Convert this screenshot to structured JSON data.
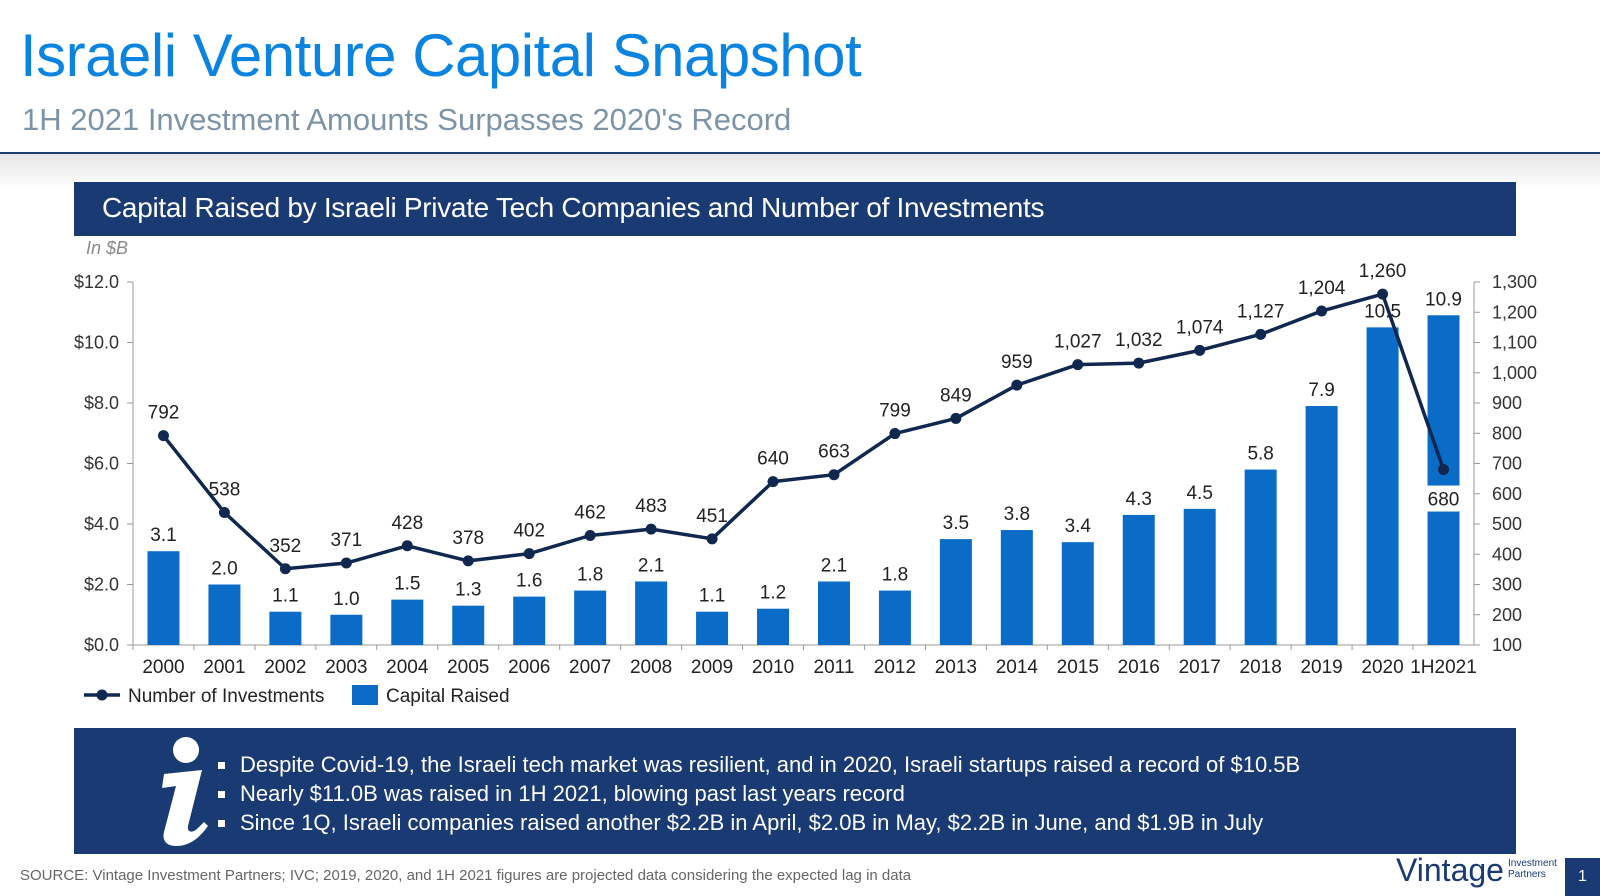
{
  "slide": {
    "title": "Israeli Venture Capital Snapshot",
    "subtitle": "1H 2021 Investment Amounts Surpasses 2020's Record",
    "chart_header": "Capital Raised by Israeli Private Tech Companies and Number of Investments",
    "bullets": [
      "Despite Covid-19, the Israeli tech market was resilient, and in 2020, Israeli startups raised a record of $10.5B",
      "Nearly $11.0B was raised in 1H 2021, blowing past last years record",
      "Since 1Q, Israeli companies raised another $2.2B in April, $2.0B in May, $2.2B in June, and $1.9B in July"
    ],
    "source": "SOURCE: Vintage Investment Partners; IVC; 2019, 2020, and 1H 2021 figures are projected data considering the expected lag in data",
    "logo": {
      "word": "Vintage",
      "sub_line1": "Investment",
      "sub_line2": "Partners"
    },
    "page_number": "1",
    "info_icon": "info-i-icon"
  },
  "colors": {
    "bar": "#0a6cc7",
    "line": "#10274f",
    "header_bg": "#1a3a73",
    "title": "#0a84e0",
    "subtitle": "#7d93a8"
  },
  "chart_data": {
    "type": "bar",
    "units_label": "In $B",
    "categories": [
      "2000",
      "2001",
      "2002",
      "2003",
      "2004",
      "2005",
      "2006",
      "2007",
      "2008",
      "2009",
      "2010",
      "2011",
      "2012",
      "2013",
      "2014",
      "2015",
      "2016",
      "2017",
      "2018",
      "2019",
      "2020",
      "1H2021"
    ],
    "series": [
      {
        "name": "Capital Raised",
        "type": "bar",
        "axis": "left",
        "values": [
          3.1,
          2.0,
          1.1,
          1.0,
          1.5,
          1.3,
          1.6,
          1.8,
          2.1,
          1.1,
          1.2,
          2.1,
          1.8,
          3.5,
          3.8,
          3.4,
          4.3,
          4.5,
          5.8,
          7.9,
          10.5,
          10.9
        ],
        "labels": [
          "3.1",
          "2.0",
          "1.1",
          "1.0",
          "1.5",
          "1.3",
          "1.6",
          "1.8",
          "2.1",
          "1.1",
          "1.2",
          "2.1",
          "1.8",
          "3.5",
          "3.8",
          "3.4",
          "4.3",
          "4.5",
          "5.8",
          "7.9",
          "10.5",
          "10.9"
        ]
      },
      {
        "name": "Number of Investments",
        "type": "line",
        "axis": "right",
        "values": [
          792,
          538,
          352,
          371,
          428,
          378,
          402,
          462,
          483,
          451,
          640,
          663,
          799,
          849,
          959,
          1027,
          1032,
          1074,
          1127,
          1204,
          1260,
          680
        ],
        "labels": [
          "792",
          "538",
          "352",
          "371",
          "428",
          "378",
          "402",
          "462",
          "483",
          "451",
          "640",
          "663",
          "799",
          "849",
          "959",
          "1,027",
          "1,032",
          "1,074",
          "1,127",
          "1,204",
          "1,260",
          "680"
        ]
      }
    ],
    "left_axis": {
      "range": [
        0,
        12
      ],
      "ticks": [
        0,
        2,
        4,
        6,
        8,
        10,
        12
      ],
      "tick_labels": [
        "$0.0",
        "$2.0",
        "$4.0",
        "$6.0",
        "$8.0",
        "$10.0",
        "$12.0"
      ]
    },
    "right_axis": {
      "range": [
        100,
        1300
      ],
      "ticks": [
        100,
        200,
        300,
        400,
        500,
        600,
        700,
        800,
        900,
        1000,
        1100,
        1200,
        1300
      ],
      "tick_labels": [
        "100",
        "200",
        "300",
        "400",
        "500",
        "600",
        "700",
        "800",
        "900",
        "1,000",
        "1,100",
        "1,200",
        "1,300"
      ]
    },
    "legend": {
      "placement": "bottom-left",
      "entries": [
        "Number of Investments",
        "Capital Raised"
      ]
    },
    "grid": false
  }
}
